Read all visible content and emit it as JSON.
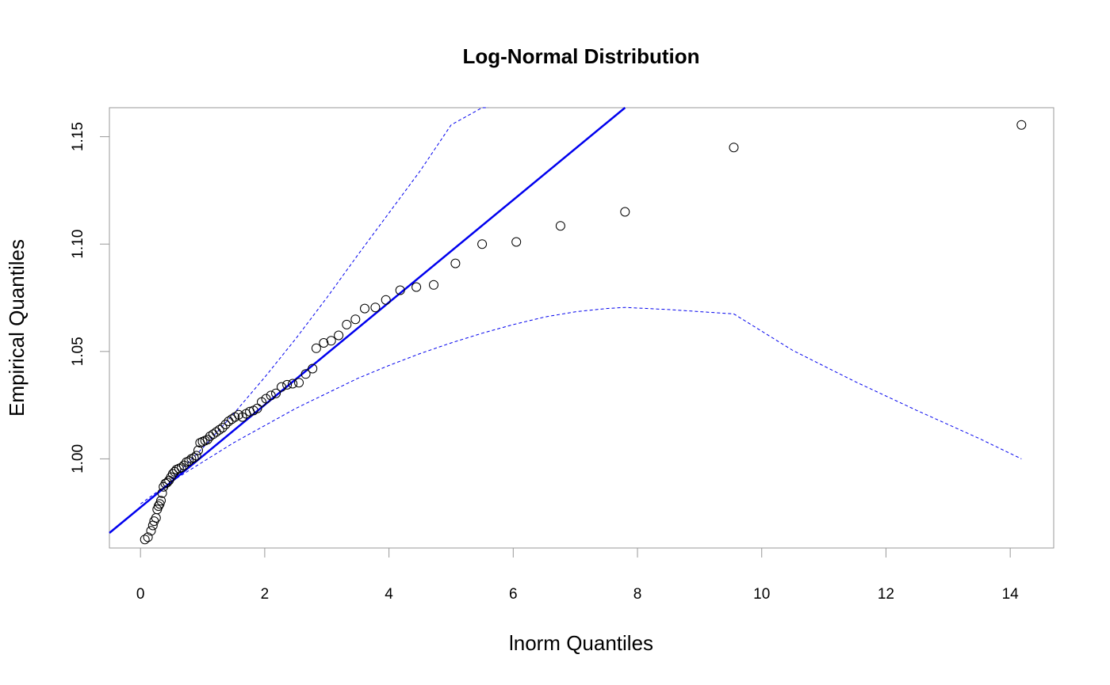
{
  "chart_data": {
    "type": "scatter",
    "title": "Log-Normal Distribution",
    "xlabel": "lnorm Quantiles",
    "ylabel": "Empirical Quantiles",
    "xlim": [
      -0.5,
      14.7
    ],
    "ylim": [
      0.9585,
      1.1635
    ],
    "x_ticks": [
      0,
      2,
      4,
      6,
      8,
      10,
      12,
      14
    ],
    "y_ticks": [
      1.0,
      1.05,
      1.1,
      1.15
    ],
    "x_tick_labels": [
      "0",
      "2",
      "4",
      "6",
      "8",
      "10",
      "12",
      "14"
    ],
    "y_tick_labels": [
      "1.00",
      "1.05",
      "1.10",
      "1.15"
    ],
    "grid": false,
    "colors": {
      "points": "#000000",
      "reference_line": "#0000ee",
      "bands": "#0000ee"
    },
    "series": [
      {
        "kind": "points",
        "x": [
          0.07,
          0.12,
          0.17,
          0.2,
          0.22,
          0.25,
          0.27,
          0.29,
          0.31,
          0.33,
          0.35,
          0.37,
          0.4,
          0.43,
          0.46,
          0.49,
          0.52,
          0.55,
          0.58,
          0.62,
          0.66,
          0.7,
          0.74,
          0.78,
          0.82,
          0.86,
          0.9,
          0.93,
          0.96,
          1.0,
          1.04,
          1.08,
          1.12,
          1.17,
          1.22,
          1.27,
          1.32,
          1.37,
          1.42,
          1.47,
          1.52,
          1.58,
          1.64,
          1.7,
          1.76,
          1.82,
          1.88,
          1.95,
          2.02,
          2.1,
          2.18,
          2.27,
          2.36,
          2.45,
          2.55,
          2.66,
          2.77,
          2.83,
          2.95,
          3.07,
          3.19,
          3.32,
          3.46,
          3.61,
          3.78,
          3.95,
          4.18,
          4.44,
          4.72,
          5.07,
          5.5,
          6.05,
          6.76,
          7.8,
          9.55,
          14.18
        ],
        "y": [
          0.9625,
          0.9635,
          0.9665,
          0.969,
          0.971,
          0.9725,
          0.9765,
          0.978,
          0.979,
          0.9805,
          0.984,
          0.987,
          0.9885,
          0.989,
          0.99,
          0.9915,
          0.993,
          0.994,
          0.995,
          0.9955,
          0.996,
          0.997,
          0.9985,
          0.999,
          1.0,
          1.0005,
          1.0015,
          1.004,
          1.0075,
          1.008,
          1.0085,
          1.009,
          1.0105,
          1.0115,
          1.0125,
          1.0135,
          1.0145,
          1.016,
          1.0175,
          1.0185,
          1.0195,
          1.0205,
          1.0195,
          1.021,
          1.022,
          1.0225,
          1.0235,
          1.0265,
          1.028,
          1.0295,
          1.0305,
          1.0335,
          1.0345,
          1.035,
          1.0355,
          1.0395,
          1.042,
          1.0515,
          1.054,
          1.055,
          1.0575,
          1.0625,
          1.065,
          1.07,
          1.0705,
          1.074,
          1.0785,
          1.08,
          1.081,
          1.091,
          1.1,
          1.101,
          1.1085,
          1.115,
          1.145,
          1.1555
        ]
      },
      {
        "kind": "line",
        "x": [
          -0.5,
          7.8
        ],
        "y": [
          0.9655,
          1.1635
        ]
      },
      {
        "kind": "dashed-band-upper",
        "x": [
          0.5,
          1.0,
          1.5,
          2.0,
          2.5,
          3.0,
          3.5,
          4.0,
          4.5,
          5.0,
          5.5,
          5.6
        ],
        "y": [
          0.9905,
          1.005,
          1.021,
          1.038,
          1.056,
          1.075,
          1.095,
          1.1145,
          1.134,
          1.1555,
          1.1635,
          1.1635
        ]
      },
      {
        "kind": "dashed-band-lower",
        "x": [
          0.0,
          0.5,
          1.0,
          1.5,
          2.0,
          2.5,
          3.0,
          3.5,
          4.0,
          4.5,
          5.0,
          5.5,
          6.0,
          6.5,
          7.0,
          7.5,
          7.8,
          8.5,
          9.55,
          10.5,
          11.5,
          12.5,
          13.5,
          14.18
        ],
        "y": [
          0.979,
          0.9895,
          0.9985,
          1.0075,
          1.0155,
          1.0235,
          1.0305,
          1.0375,
          1.0435,
          1.049,
          1.054,
          1.0585,
          1.0625,
          1.066,
          1.0685,
          1.07,
          1.0705,
          1.0695,
          1.0675,
          1.0505,
          1.036,
          1.0225,
          1.0095,
          1.0
        ]
      }
    ]
  }
}
